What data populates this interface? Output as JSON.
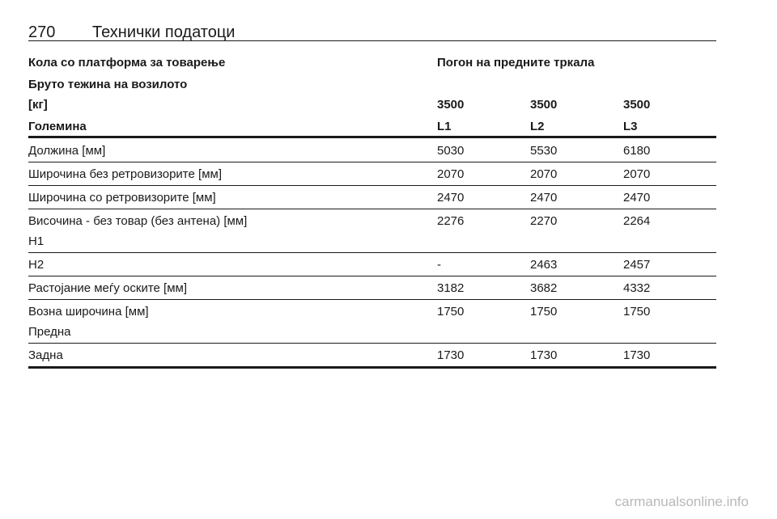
{
  "header": {
    "page_number": "270",
    "title": "Технички податоци"
  },
  "table": {
    "heading_left": "Кола со платформа за товарење",
    "heading_right": "Погон на предните тркала",
    "weight_label": "Бруто тежина на возилото",
    "weight_unit": "[кг]",
    "weights": [
      3500,
      3500,
      3500
    ],
    "size_label": "Големина",
    "sizes": [
      "L1",
      "L2",
      "L3"
    ],
    "rows": [
      {
        "label": "Должина [мм]",
        "values": [
          5030,
          5530,
          6180
        ]
      },
      {
        "label": "Широчина без ретровизорите [мм]",
        "values": [
          2070,
          2070,
          2070
        ]
      },
      {
        "label": "Широчина со ретровизорите [мм]",
        "values": [
          2470,
          2470,
          2470
        ]
      },
      {
        "label": "Височина - без товар (без антена) [мм]",
        "sublabel": "H1",
        "values": [
          2276,
          2270,
          2264
        ]
      },
      {
        "label": "H2",
        "values": [
          "-",
          2463,
          2457
        ]
      },
      {
        "label": "Растојание меѓу оските [мм]",
        "values": [
          3182,
          3682,
          4332
        ]
      },
      {
        "label": "Возна широчина [мм]",
        "sublabel": "Предна",
        "values": [
          1750,
          1750,
          1750
        ]
      },
      {
        "label": "Задна",
        "values": [
          1730,
          1730,
          1730
        ]
      }
    ]
  },
  "watermark": "carmanualsonline.info"
}
